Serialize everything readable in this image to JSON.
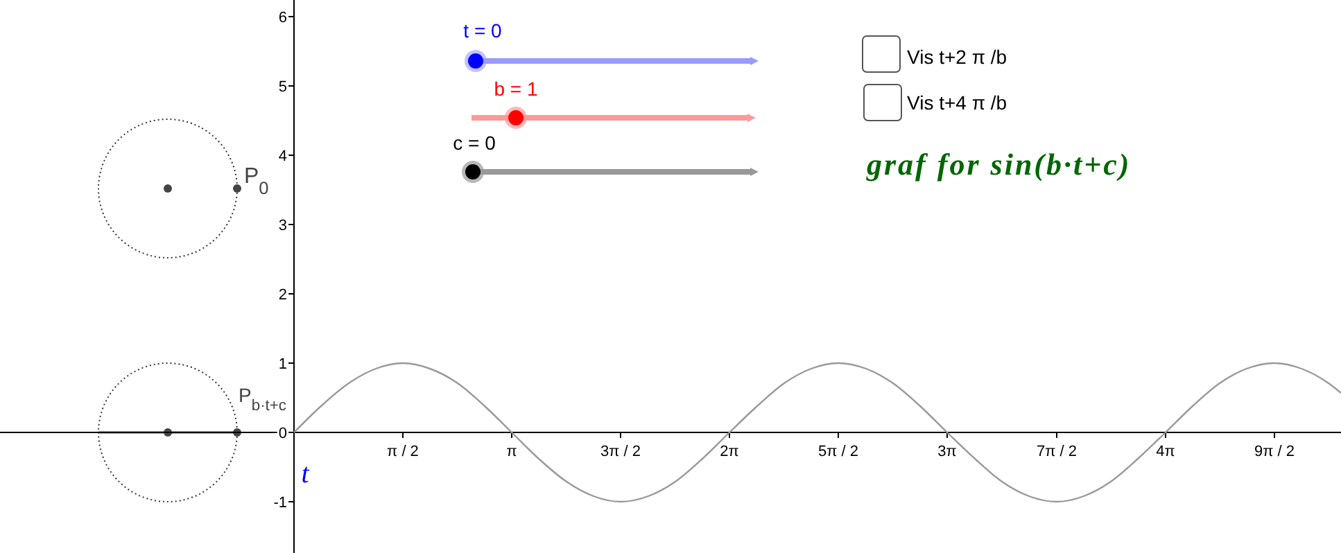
{
  "chart_data": {
    "type": "line",
    "title": "graf for sin(b·t+c)",
    "xlabel": "t",
    "x": [
      0,
      0.39,
      0.79,
      1.18,
      1.57,
      1.96,
      2.36,
      2.75,
      3.14,
      3.53,
      3.93,
      4.32,
      4.71,
      5.11,
      5.5,
      5.89,
      6.28,
      6.68,
      7.07,
      7.46,
      7.85,
      8.25,
      8.64,
      9.03,
      9.42,
      9.82,
      10.21,
      10.6,
      11,
      11.39,
      11.78,
      12.17,
      12.57,
      12.96,
      13.35,
      13.74,
      14.14,
      14.53,
      14.92,
      15.1
    ],
    "series": [
      {
        "color": "#999999",
        "values": [
          0,
          0.38,
          0.71,
          0.92,
          1,
          0.92,
          0.71,
          0.38,
          0,
          -0.38,
          -0.71,
          -0.92,
          -1,
          -0.92,
          -0.71,
          -0.38,
          0,
          0.38,
          0.71,
          0.92,
          1,
          0.92,
          0.71,
          0.38,
          0,
          -0.38,
          -0.71,
          -0.92,
          -1,
          -0.92,
          -0.71,
          -0.38,
          0,
          0.38,
          0.71,
          0.92,
          1,
          0.92,
          0.71,
          0.57
        ]
      }
    ],
    "xlim": [
      -4.24,
      15.1
    ],
    "ylim": [
      -1.74,
      6.24
    ],
    "xticks": [
      {
        "value": 1.57,
        "label": "π / 2"
      },
      {
        "value": 3.14,
        "label": "π"
      },
      {
        "value": 4.71,
        "label": "3π / 2"
      },
      {
        "value": 6.28,
        "label": "2π"
      },
      {
        "value": 7.85,
        "label": "5π / 2"
      },
      {
        "value": 9.42,
        "label": "3π"
      },
      {
        "value": 11,
        "label": "7π / 2"
      },
      {
        "value": 12.57,
        "label": "4π"
      },
      {
        "value": 14.14,
        "label": "9π / 2"
      }
    ],
    "yticks": [
      -1,
      0,
      1,
      2,
      3,
      4,
      5,
      6
    ],
    "grid": false,
    "annotations": [
      "t = 0",
      "b = 1",
      "c = 0",
      "Vis t+2 π /b",
      "Vis t+4 π /b",
      "P$_{0}$",
      "P$_{b·t+c}$"
    ]
  }
}
